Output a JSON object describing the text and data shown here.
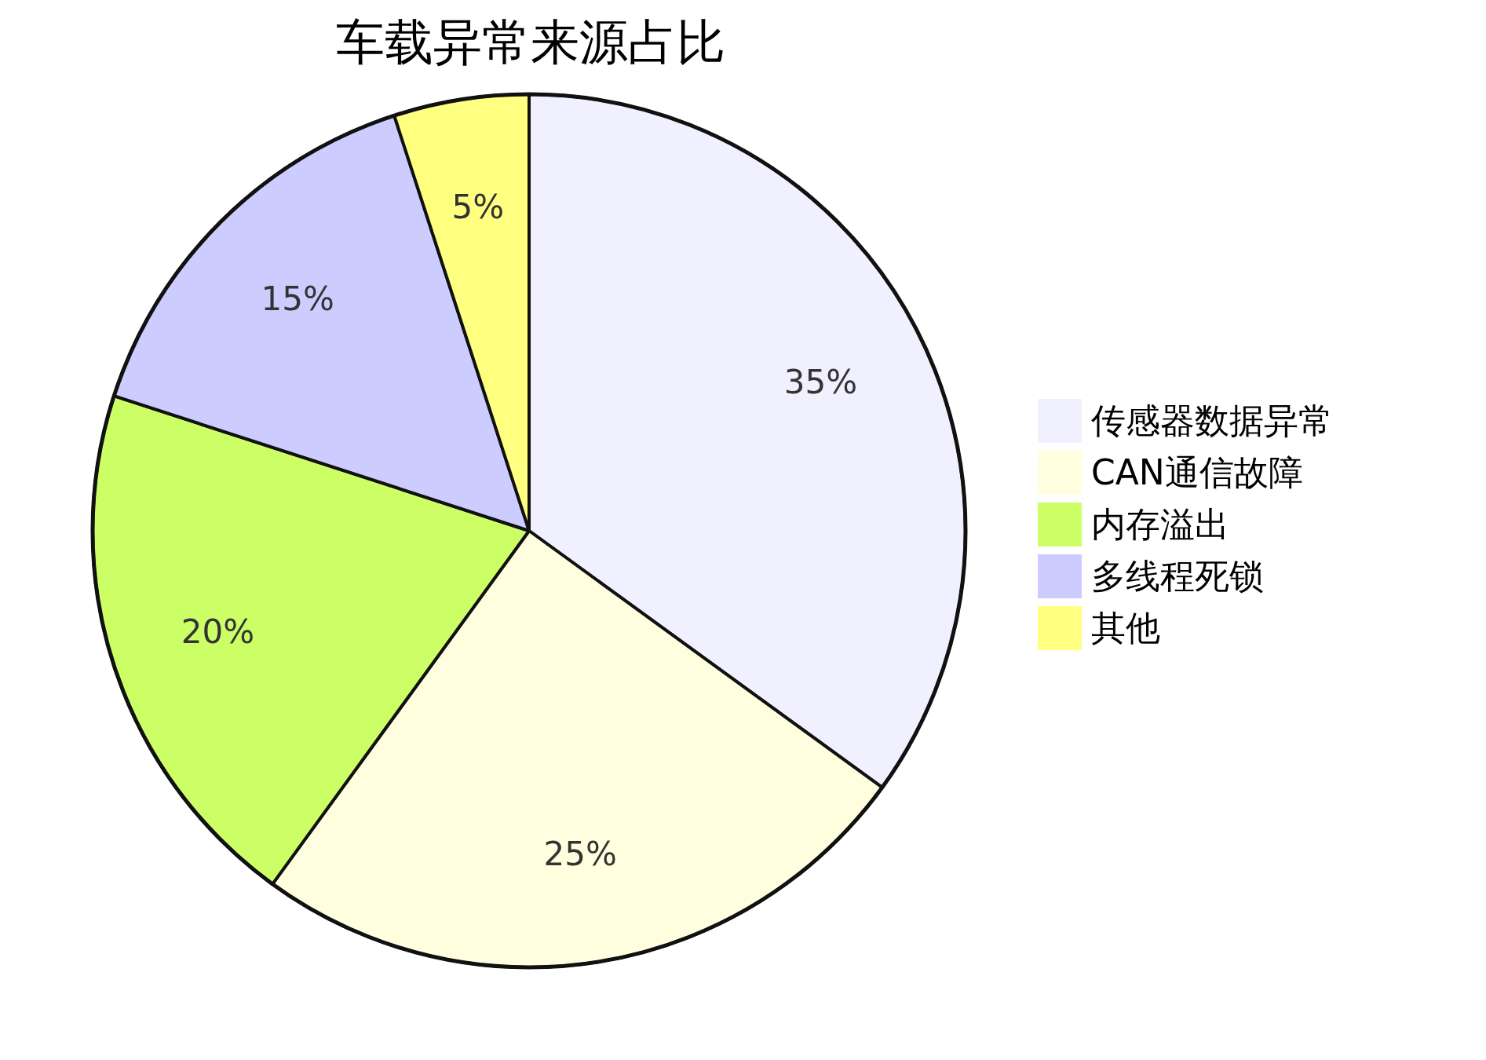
{
  "chart_data": {
    "type": "pie",
    "title": "车载异常来源占比",
    "categories": [
      "传感器数据异常",
      "CAN通信故障",
      "内存溢出",
      "多线程死锁",
      "其他"
    ],
    "values": [
      35,
      25,
      20,
      15,
      5
    ],
    "colors": [
      "#f0f0ff",
      "#ffffe0",
      "#ccff66",
      "#ccccff",
      "#ffff80"
    ],
    "value_labels": [
      "35%",
      "25%",
      "20%",
      "15%",
      "5%"
    ],
    "legend": "right"
  }
}
